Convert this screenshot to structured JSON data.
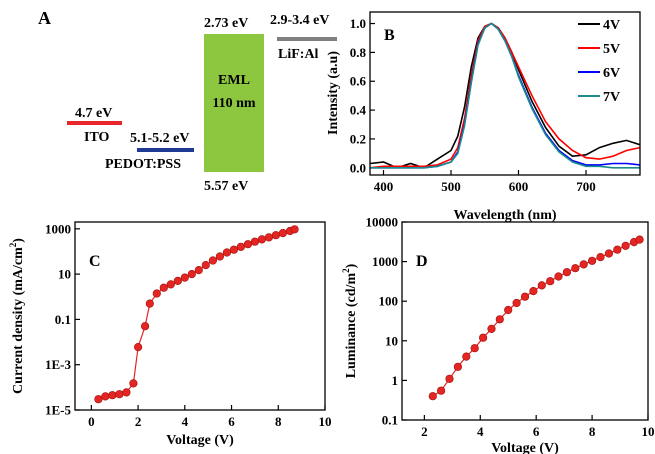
{
  "colors": {
    "eml": "#8dc63f",
    "ito": "#e8262c",
    "pedot": "#1f3a93",
    "lif": "#808080",
    "marker": "#e52521"
  },
  "panel_a": {
    "label": "A",
    "eml_top": "2.73 eV",
    "eml_bottom": "5.57 eV",
    "eml_name": "EML",
    "eml_thickness": "110 nm",
    "lif_energy": "2.9-3.4 eV",
    "lif_label": "LiF:Al",
    "ito_energy": "4.7 eV",
    "ito_label": "ITO",
    "pedot_energy": "5.1-5.2 eV",
    "pedot_label": "PEDOT:PSS"
  },
  "chart_data": [
    {
      "panel": "B",
      "type": "line",
      "xlabel": "Wavelength (nm)",
      "ylabel": "Intensity (a.u)",
      "xlim": [
        380,
        780
      ],
      "ylim": [
        -0.05,
        1.08
      ],
      "xticks": [
        "400",
        "500",
        "600",
        "700"
      ],
      "yticks": [
        "0.0",
        "0.2",
        "0.4",
        "0.6",
        "0.8",
        "1.0"
      ],
      "legend_position": "top-right",
      "x": [
        380,
        400,
        420,
        440,
        460,
        480,
        500,
        510,
        520,
        530,
        540,
        550,
        560,
        570,
        580,
        590,
        600,
        620,
        640,
        660,
        680,
        700,
        720,
        740,
        760,
        780
      ],
      "series": [
        {
          "name": "4V",
          "color": "#000000",
          "values": [
            0.03,
            0.04,
            0.0,
            0.03,
            0.0,
            0.06,
            0.12,
            0.22,
            0.42,
            0.7,
            0.9,
            0.98,
            1.0,
            0.97,
            0.9,
            0.8,
            0.68,
            0.46,
            0.28,
            0.15,
            0.08,
            0.09,
            0.14,
            0.17,
            0.19,
            0.16
          ]
        },
        {
          "name": "5V",
          "color": "#ff0000",
          "values": [
            0.0,
            0.01,
            0.01,
            0.01,
            0.01,
            0.02,
            0.06,
            0.14,
            0.34,
            0.64,
            0.88,
            0.98,
            1.0,
            0.97,
            0.9,
            0.8,
            0.7,
            0.5,
            0.32,
            0.2,
            0.12,
            0.07,
            0.06,
            0.08,
            0.12,
            0.14
          ]
        },
        {
          "name": "6V",
          "color": "#0000ff",
          "values": [
            0.0,
            0.0,
            0.0,
            0.0,
            0.0,
            0.01,
            0.04,
            0.11,
            0.3,
            0.6,
            0.86,
            0.97,
            1.0,
            0.96,
            0.88,
            0.77,
            0.64,
            0.42,
            0.24,
            0.12,
            0.05,
            0.02,
            0.02,
            0.03,
            0.03,
            0.02
          ]
        },
        {
          "name": "7V",
          "color": "#1a8c8c",
          "values": [
            0.0,
            0.0,
            0.0,
            0.0,
            0.0,
            0.01,
            0.04,
            0.1,
            0.29,
            0.59,
            0.85,
            0.97,
            1.0,
            0.96,
            0.88,
            0.77,
            0.63,
            0.41,
            0.23,
            0.11,
            0.04,
            0.01,
            0.01,
            0.0,
            0.0,
            0.0
          ]
        }
      ]
    },
    {
      "panel": "C",
      "type": "line",
      "xlabel": "Voltage (V)",
      "ylabel": "Current density (mA/cm",
      "ylabel_sup": "2",
      "ylabel_end": ")",
      "yscale": "log",
      "xlim": [
        -0.7,
        10
      ],
      "ylim": [
        1e-05,
        2000
      ],
      "xticks": [
        "0",
        "2",
        "4",
        "6",
        "8",
        "10"
      ],
      "yticks": [
        "1E-5",
        "1E-3",
        "0.1",
        "10",
        "1000"
      ],
      "x": [
        0.3,
        0.6,
        0.9,
        1.2,
        1.5,
        1.8,
        2.0,
        2.3,
        2.5,
        2.8,
        3.1,
        3.4,
        3.7,
        4.0,
        4.3,
        4.6,
        4.9,
        5.2,
        5.5,
        5.8,
        6.1,
        6.4,
        6.7,
        7.0,
        7.3,
        7.6,
        7.9,
        8.2,
        8.5,
        8.7
      ],
      "y": [
        3e-05,
        4e-05,
        4.5e-05,
        5e-05,
        6e-05,
        0.00015,
        0.006,
        0.05,
        0.5,
        1.4,
        2.5,
        3.5,
        5,
        7,
        10,
        15,
        25,
        40,
        60,
        90,
        120,
        160,
        210,
        270,
        340,
        420,
        520,
        650,
        800,
        950
      ]
    },
    {
      "panel": "D",
      "type": "line",
      "xlabel": "Voltage (V)",
      "ylabel": "Luminance (cd/m",
      "ylabel_sup": "2",
      "ylabel_end": ")",
      "yscale": "log",
      "xlim": [
        1.2,
        10
      ],
      "ylim": [
        0.1,
        10000
      ],
      "xticks": [
        "2",
        "4",
        "6",
        "8",
        "10"
      ],
      "yticks": [
        "0.1",
        "1",
        "10",
        "100",
        "1000",
        "10000"
      ],
      "x": [
        2.3,
        2.6,
        2.9,
        3.2,
        3.5,
        3.8,
        4.1,
        4.4,
        4.7,
        5.0,
        5.3,
        5.6,
        5.9,
        6.2,
        6.5,
        6.8,
        7.1,
        7.4,
        7.7,
        8.0,
        8.3,
        8.6,
        8.9,
        9.2,
        9.5,
        9.7
      ],
      "y": [
        0.4,
        0.55,
        1.1,
        2.2,
        4,
        6.5,
        12,
        20,
        35,
        60,
        90,
        130,
        180,
        250,
        320,
        420,
        540,
        680,
        850,
        1050,
        1300,
        1600,
        2000,
        2500,
        3100,
        3600
      ]
    }
  ]
}
